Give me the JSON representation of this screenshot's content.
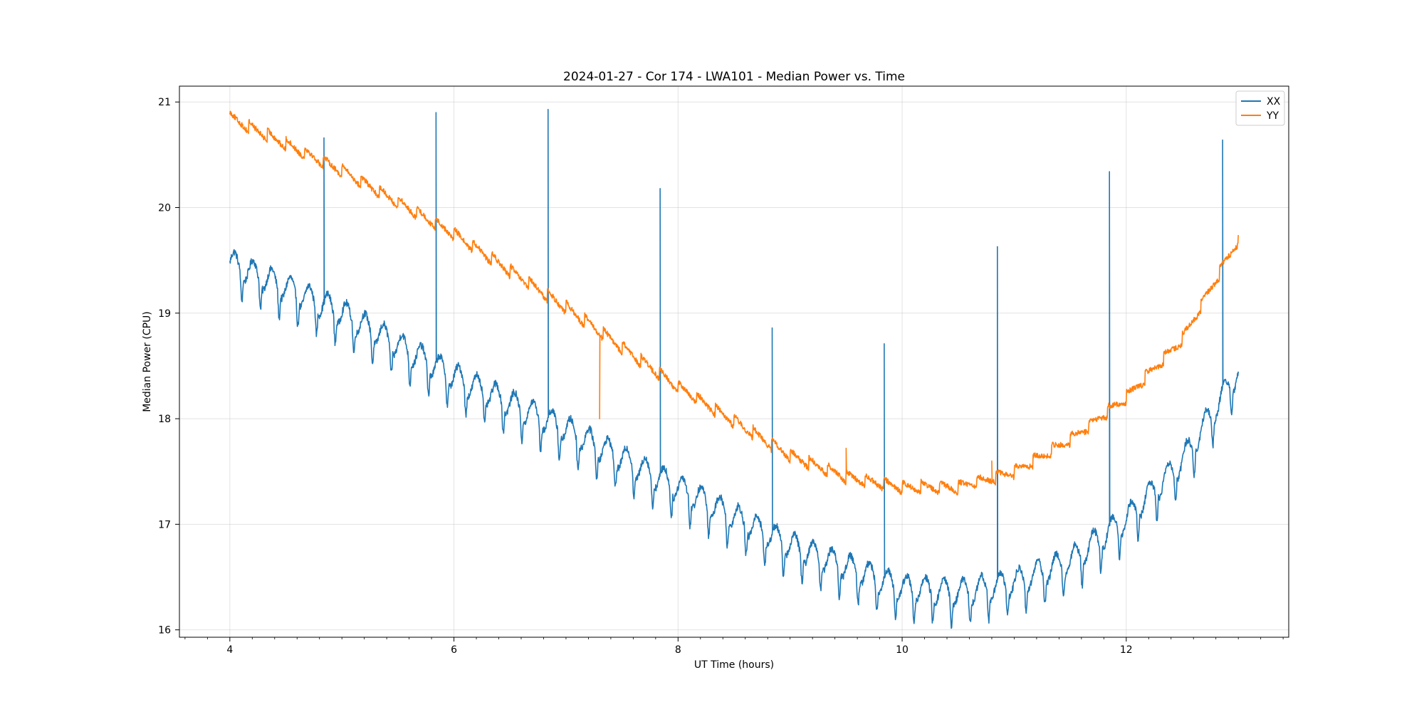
{
  "chart_data": {
    "type": "line",
    "title": "2024-01-27 - Cor 174 - LWA101 - Median Power vs. Time",
    "xlabel": "UT Time (hours)",
    "ylabel": "Median Power (CPU)",
    "xlim": [
      3.55,
      13.45
    ],
    "ylim": [
      15.93,
      21.15
    ],
    "xticks": [
      4,
      6,
      8,
      10,
      12
    ],
    "xtick_labels": [
      "4",
      "6",
      "8",
      "10",
      "12"
    ],
    "x_minor_step": 0.2,
    "yticks": [
      16,
      17,
      18,
      19,
      20,
      21
    ],
    "ytick_labels": [
      "16",
      "17",
      "18",
      "19",
      "20",
      "21"
    ],
    "grid": true,
    "legend_position": "top-right",
    "series": [
      {
        "name": "XX",
        "color": "#1f77b4",
        "x_range": [
          4.0,
          13.0
        ],
        "trend": [
          [
            4.0,
            19.48
          ],
          [
            5.0,
            19.0
          ],
          [
            6.0,
            18.4
          ],
          [
            7.0,
            17.9
          ],
          [
            8.0,
            17.35
          ],
          [
            9.0,
            16.8
          ],
          [
            9.5,
            16.6
          ],
          [
            10.0,
            16.4
          ],
          [
            10.5,
            16.35
          ],
          [
            11.0,
            16.45
          ],
          [
            11.5,
            16.65
          ],
          [
            12.0,
            17.05
          ],
          [
            12.5,
            17.6
          ],
          [
            13.0,
            18.45
          ]
        ],
        "spikes": [
          [
            4.84,
            20.66
          ],
          [
            5.84,
            20.9
          ],
          [
            6.84,
            20.93
          ],
          [
            7.84,
            20.18
          ],
          [
            8.84,
            18.86
          ],
          [
            9.84,
            18.71
          ],
          [
            10.85,
            19.63
          ],
          [
            11.85,
            20.34
          ],
          [
            12.86,
            20.64
          ]
        ]
      },
      {
        "name": "YY",
        "color": "#ff7f0e",
        "x_range": [
          4.0,
          13.0
        ],
        "trend": [
          [
            4.0,
            20.85
          ],
          [
            5.0,
            20.35
          ],
          [
            6.0,
            19.75
          ],
          [
            7.0,
            19.05
          ],
          [
            8.0,
            18.3
          ],
          [
            9.0,
            17.65
          ],
          [
            9.5,
            17.45
          ],
          [
            10.0,
            17.35
          ],
          [
            10.5,
            17.35
          ],
          [
            11.0,
            17.5
          ],
          [
            11.5,
            17.8
          ],
          [
            12.0,
            18.2
          ],
          [
            12.5,
            18.75
          ],
          [
            13.0,
            19.7
          ]
        ],
        "spikes": [
          [
            7.3,
            18.0
          ],
          [
            9.5,
            17.72
          ],
          [
            10.8,
            17.6
          ]
        ]
      }
    ]
  }
}
